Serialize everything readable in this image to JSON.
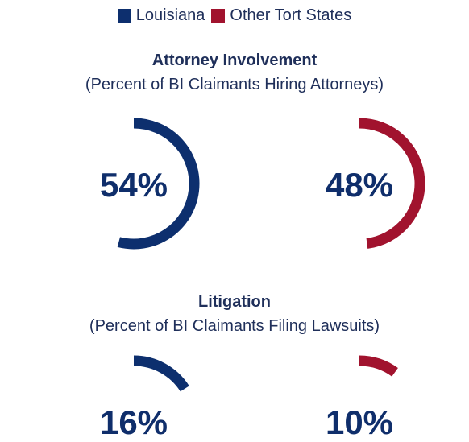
{
  "legend": [
    {
      "label": "Louisiana",
      "color": "#0d2f6e"
    },
    {
      "label": "Other Tort States",
      "color": "#a1132e"
    }
  ],
  "chart_data": [
    {
      "type": "pie",
      "title": "Attorney Involvement",
      "subtitle": "(Percent of BI Claimants Hiring Attorneys)",
      "series": [
        {
          "name": "Louisiana",
          "value": 54,
          "label": "54%",
          "color": "#0d2f6e"
        },
        {
          "name": "Other Tort States",
          "value": 48,
          "label": "48%",
          "color": "#a1132e"
        }
      ]
    },
    {
      "type": "pie",
      "title": "Litigation",
      "subtitle": "(Percent of BI Claimants Filing Lawsuits)",
      "series": [
        {
          "name": "Louisiana",
          "value": 16,
          "label": "16%",
          "color": "#0d2f6e"
        },
        {
          "name": "Other Tort States",
          "value": 10,
          "label": "10%",
          "color": "#a1132e"
        }
      ]
    }
  ]
}
